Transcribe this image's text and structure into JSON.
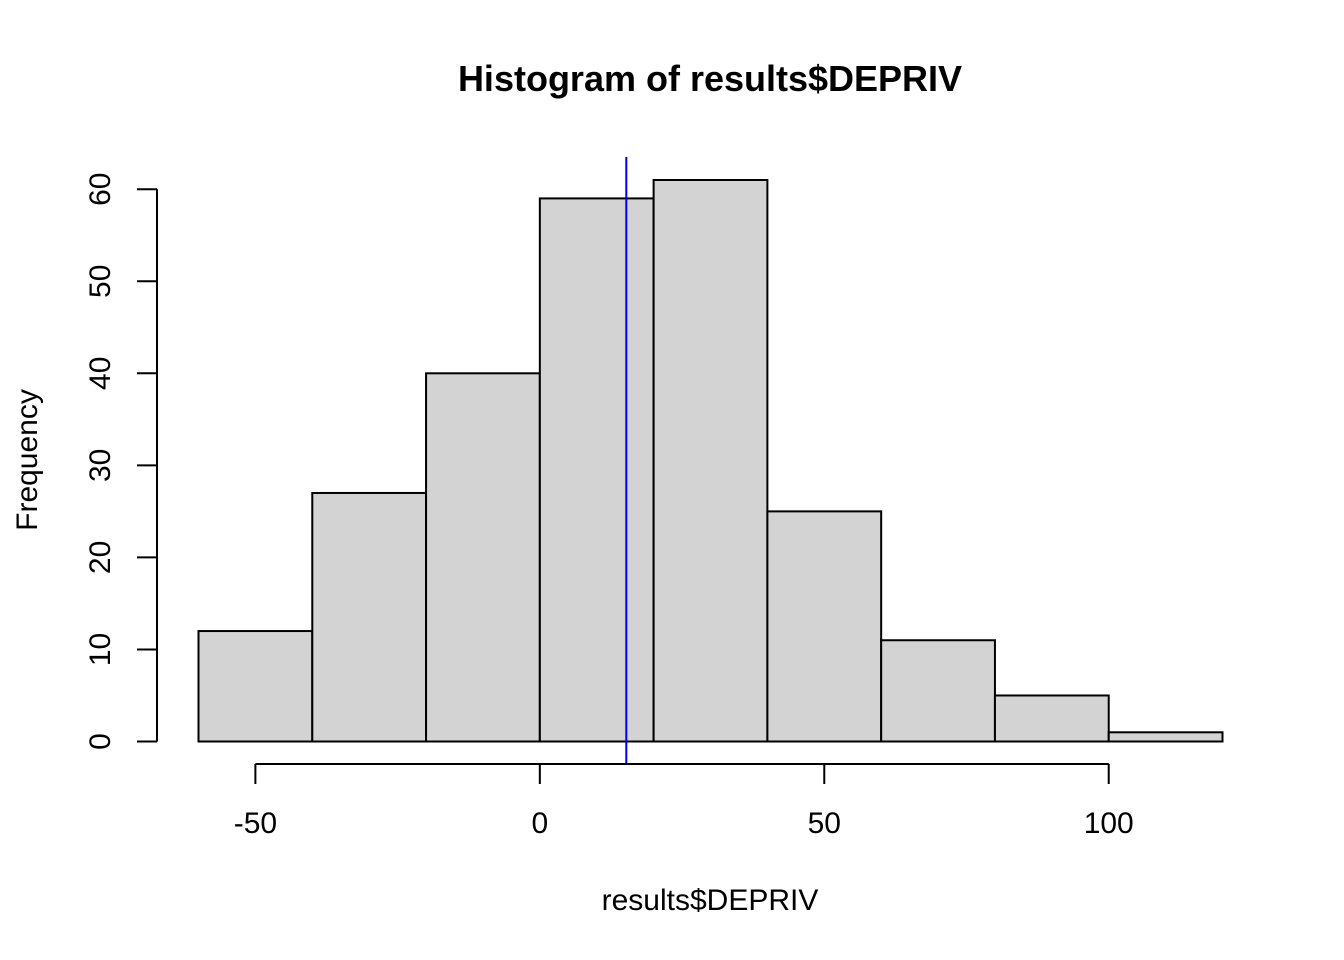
{
  "chart_data": {
    "type": "bar",
    "subtype": "histogram",
    "title": "Histogram of results$DEPRIV",
    "xlabel": "results$DEPRIV",
    "ylabel": "Frequency",
    "bins": [
      {
        "start": -60,
        "end": -40,
        "count": 12
      },
      {
        "start": -40,
        "end": -20,
        "count": 27
      },
      {
        "start": -20,
        "end": 0,
        "count": 40
      },
      {
        "start": 0,
        "end": 20,
        "count": 59
      },
      {
        "start": 20,
        "end": 40,
        "count": 61
      },
      {
        "start": 40,
        "end": 60,
        "count": 25
      },
      {
        "start": 60,
        "end": 80,
        "count": 11
      },
      {
        "start": 80,
        "end": 100,
        "count": 5
      },
      {
        "start": 100,
        "end": 120,
        "count": 1
      }
    ],
    "x_ticks": [
      -50,
      0,
      50,
      100
    ],
    "y_ticks": [
      0,
      10,
      20,
      30,
      40,
      50,
      60
    ],
    "xlim": [
      -60,
      120
    ],
    "ylim": [
      0,
      61
    ],
    "vline": {
      "x": 15.2,
      "color": "#0000ee"
    },
    "bar_color": "#d3d3d3",
    "grid": false
  }
}
